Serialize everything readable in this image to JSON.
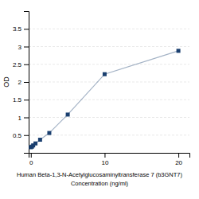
{
  "chart_data": {
    "type": "line",
    "xlabel": [
      "Human Beta-1,3-N-Acetylglucosaminyltransferase 7 (b3GNT7)",
      "Concentration (ng/ml)"
    ],
    "ylabel": "OD",
    "x": [
      0,
      0.156,
      0.312,
      0.625,
      1.25,
      2.5,
      5,
      10,
      20
    ],
    "series": [
      {
        "color": "#1a3f6f",
        "marker": "square",
        "line_style": "solid",
        "values": [
          0.158,
          0.175,
          0.21,
          0.265,
          0.37,
          0.56,
          1.08,
          2.22,
          2.88
        ]
      }
    ],
    "xlim": [
      -0.3,
      21.5
    ],
    "xticks": [
      0,
      10,
      20
    ],
    "ylim": [
      0.0,
      4.0
    ],
    "yticks": [
      0.5,
      1.0,
      1.5,
      2.0,
      2.5,
      3.0,
      3.5
    ],
    "grid": true
  }
}
